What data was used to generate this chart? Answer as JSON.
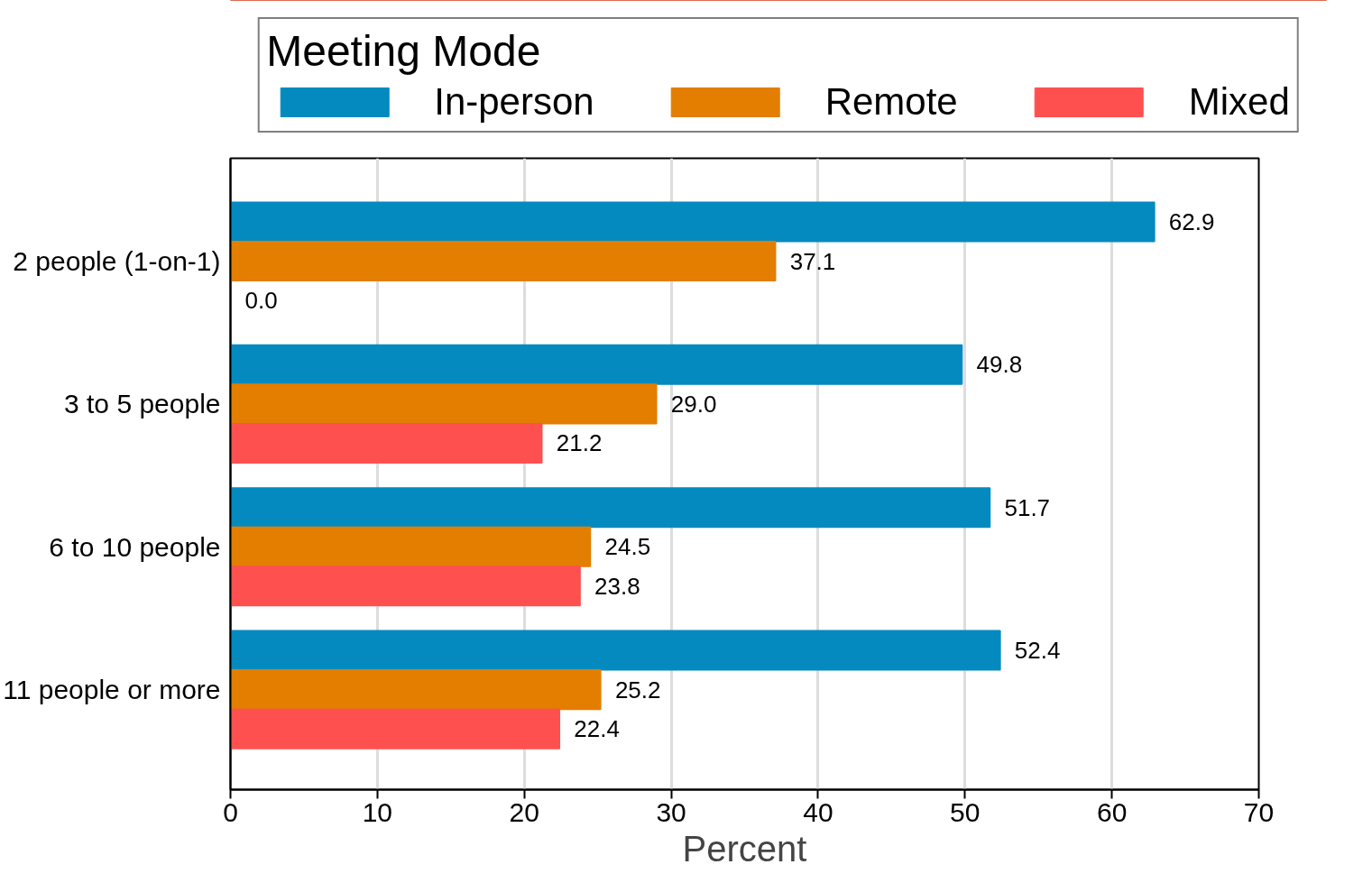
{
  "chart_data": {
    "type": "bar",
    "orientation": "horizontal",
    "categories": [
      "2 people (1-on-1)",
      "3 to 5 people",
      "6 to 10 people",
      "11 people or more"
    ],
    "series": [
      {
        "name": "In-person",
        "color": "#048abf",
        "values": [
          62.9,
          49.8,
          51.7,
          52.4
        ]
      },
      {
        "name": "Remote",
        "color": "#e37e00",
        "values": [
          37.1,
          29.0,
          24.5,
          25.2
        ]
      },
      {
        "name": "Mixed",
        "color": "#ff5050",
        "values": [
          0.0,
          21.2,
          23.8,
          22.4
        ]
      }
    ],
    "legend_title": "Meeting Mode",
    "legend": "top",
    "xlabel": "Percent",
    "xlim": [
      0,
      70
    ],
    "xticks": [
      0,
      10,
      20,
      30,
      40,
      50,
      60,
      70
    ],
    "grid": "x",
    "value_labels": [
      [
        "62.9",
        "49.8",
        "51.7",
        "52.4"
      ],
      [
        "37.1",
        "29.0",
        "24.5",
        "25.2"
      ],
      [
        "0.0",
        "21.2",
        "23.8",
        "22.4"
      ]
    ]
  }
}
